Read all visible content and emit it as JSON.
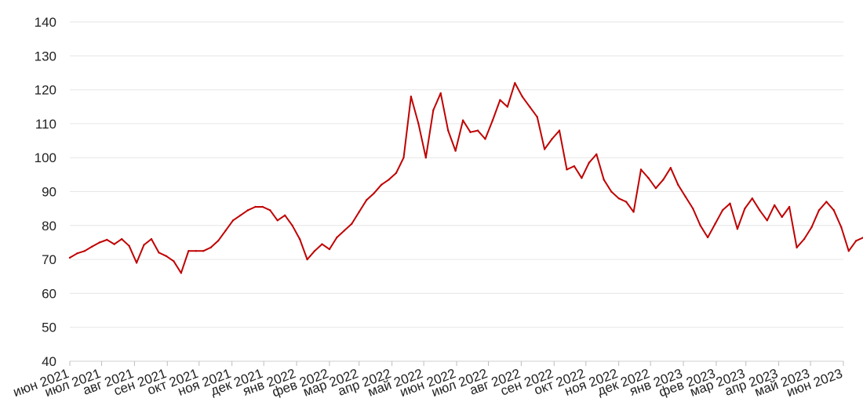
{
  "chart_data": {
    "type": "line",
    "title": "",
    "xlabel": "",
    "ylabel": "",
    "ylim": [
      40,
      140
    ],
    "yticks": [
      40,
      50,
      60,
      70,
      80,
      90,
      100,
      110,
      120,
      130,
      140
    ],
    "grid": true,
    "legend": "none",
    "line_color": "#c00000",
    "x_ticks": [
      "июн 2021",
      "июл 2021",
      "авг 2021",
      "сен 2021",
      "окт 2021",
      "ноя 2021",
      "дек 2021",
      "янв 2022",
      "фев 2022",
      "мар 2022",
      "апр 2022",
      "май 2022",
      "июн 2022",
      "июл 2022",
      "авг 2022",
      "сен 2022",
      "окт 2022",
      "ноя 2022",
      "дек 2022",
      "янв 2023",
      "фев 2023",
      "мар 2023",
      "апр 2023",
      "май 2023",
      "июн 2023"
    ],
    "x_tick_dates": [
      "2021-06-01",
      "2021-07-01",
      "2021-08-01",
      "2021-09-01",
      "2021-10-01",
      "2021-11-01",
      "2021-12-01",
      "2022-01-01",
      "2022-02-01",
      "2022-03-01",
      "2022-04-01",
      "2022-05-01",
      "2022-06-01",
      "2022-07-01",
      "2022-08-01",
      "2022-09-01",
      "2022-10-01",
      "2022-11-01",
      "2022-12-01",
      "2023-01-01",
      "2023-02-01",
      "2023-03-01",
      "2023-04-01",
      "2023-05-01",
      "2023-06-01"
    ],
    "series": [
      {
        "x": [
          "2021-06-01",
          "2021-06-08",
          "2021-06-15",
          "2021-06-22",
          "2021-06-29",
          "2021-07-06",
          "2021-07-13",
          "2021-07-20",
          "2021-07-27",
          "2021-08-03",
          "2021-08-10",
          "2021-08-17",
          "2021-08-24",
          "2021-08-31",
          "2021-09-07",
          "2021-09-14",
          "2021-09-21",
          "2021-09-28",
          "2021-10-05",
          "2021-10-12",
          "2021-10-19",
          "2021-10-26",
          "2021-11-02",
          "2021-11-09",
          "2021-11-16",
          "2021-11-23",
          "2021-11-30",
          "2021-12-07",
          "2021-12-14",
          "2021-12-21",
          "2021-12-28",
          "2022-01-04",
          "2022-01-11",
          "2022-01-18",
          "2022-01-25",
          "2022-02-01",
          "2022-02-08",
          "2022-02-15",
          "2022-02-22",
          "2022-03-01",
          "2022-03-08",
          "2022-03-15",
          "2022-03-22",
          "2022-03-29",
          "2022-04-05",
          "2022-04-12",
          "2022-04-19",
          "2022-04-26",
          "2022-05-03",
          "2022-05-10",
          "2022-05-17",
          "2022-05-24",
          "2022-05-31",
          "2022-06-07",
          "2022-06-14",
          "2022-06-21",
          "2022-06-28",
          "2022-07-05",
          "2022-07-12",
          "2022-07-19",
          "2022-07-26",
          "2022-08-02",
          "2022-08-09",
          "2022-08-16",
          "2022-08-23",
          "2022-08-30",
          "2022-09-06",
          "2022-09-13",
          "2022-09-20",
          "2022-09-27",
          "2022-10-04",
          "2022-10-11",
          "2022-10-18",
          "2022-10-25",
          "2022-11-01",
          "2022-11-08",
          "2022-11-15",
          "2022-11-22",
          "2022-11-29",
          "2022-12-06",
          "2022-12-13",
          "2022-12-20",
          "2022-12-27",
          "2023-01-03",
          "2023-01-10",
          "2023-01-17",
          "2023-01-24",
          "2023-01-31",
          "2023-02-07",
          "2023-02-14",
          "2023-02-21",
          "2023-02-28",
          "2023-03-07",
          "2023-03-14",
          "2023-03-21",
          "2023-03-28",
          "2023-04-04",
          "2023-04-11",
          "2023-04-18",
          "2023-04-25",
          "2023-05-02",
          "2023-05-09",
          "2023-05-16",
          "2023-05-23",
          "2023-05-30",
          "2023-06-06",
          "2023-06-13",
          "2023-06-20",
          "2023-06-27"
        ],
        "values": [
          70.5,
          71.8,
          72.5,
          73.8,
          75.0,
          75.8,
          74.5,
          76.0,
          74.0,
          69.0,
          74.3,
          76.0,
          72.0,
          71.0,
          69.5,
          66.0,
          72.5,
          72.5,
          72.5,
          73.5,
          75.5,
          78.5,
          81.5,
          83.0,
          84.5,
          85.5,
          85.5,
          84.5,
          81.5,
          83.0,
          80.0,
          76.0,
          70.0,
          72.5,
          74.5,
          73.0,
          76.5,
          78.5,
          80.5,
          84.0,
          87.5,
          89.5,
          92.0,
          93.5,
          95.5,
          100.0,
          118.0,
          110.0,
          100.0,
          114.0,
          119.0,
          108.0,
          102.0,
          111.0,
          107.5,
          108.0,
          105.5,
          111.0,
          117.0,
          115.0,
          122.0,
          118.0,
          115.0,
          112.0,
          102.5,
          105.5,
          108.0,
          96.5,
          97.5,
          94.0,
          98.5,
          101.0,
          93.5,
          90.0,
          88.0,
          87.0,
          84.0,
          96.5,
          94.0,
          91.0,
          93.5,
          97.0,
          92.0,
          88.5,
          85.0,
          80.0,
          76.5,
          80.5,
          84.5,
          86.5,
          79.0,
          85.0,
          88.0,
          84.5,
          81.5,
          86.0,
          82.5,
          85.5,
          73.5,
          76.0,
          79.5,
          84.5,
          87.0,
          84.5,
          79.5,
          72.5,
          75.5,
          76.5,
          73.0
        ]
      }
    ]
  }
}
